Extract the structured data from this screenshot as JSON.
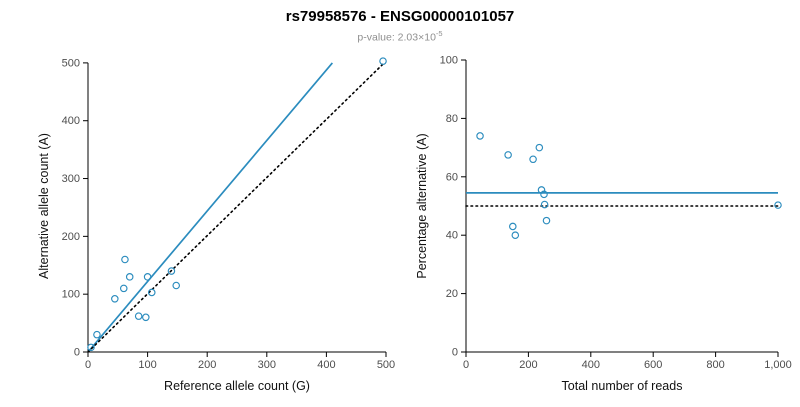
{
  "title": "rs79958576 - ENSG00000101057",
  "subtitle": {
    "prefix": "p-value: 2.03",
    "base": "×10",
    "exponent": "-5"
  },
  "colors": {
    "accent": "#2b8cbe",
    "dotted": "#000000",
    "axis": "#000000",
    "tick_text": "#4d4d4d",
    "label_text": "#111111"
  },
  "chart_data": [
    {
      "type": "scatter",
      "title": "",
      "xlabel": "Reference allele count (G)",
      "ylabel": "Alternative allele count (A)",
      "xlim": [
        0,
        500
      ],
      "ylim": [
        0,
        505
      ],
      "xticks": {
        "values": [
          0,
          100,
          200,
          300,
          400,
          500
        ],
        "labels": [
          "0",
          "100",
          "200",
          "300",
          "400",
          "500"
        ]
      },
      "yticks": {
        "values": [
          0,
          100,
          200,
          300,
          400,
          500
        ],
        "labels": [
          "0",
          "100",
          "200",
          "300",
          "400",
          "500"
        ]
      },
      "points": [
        [
          5,
          8
        ],
        [
          15,
          30
        ],
        [
          45,
          92
        ],
        [
          60,
          110
        ],
        [
          62,
          160
        ],
        [
          70,
          130
        ],
        [
          85,
          62
        ],
        [
          97,
          60
        ],
        [
          100,
          130
        ],
        [
          107,
          103
        ],
        [
          140,
          140
        ],
        [
          148,
          115
        ],
        [
          495,
          503
        ]
      ],
      "lines": [
        {
          "style": "solid",
          "color": "#2b8cbe",
          "from": [
            0,
            0
          ],
          "to": [
            410,
            500
          ]
        },
        {
          "style": "dotted",
          "color": "#000000",
          "from": [
            0,
            0
          ],
          "to": [
            497,
            500
          ]
        }
      ],
      "legend": "none",
      "grid": false
    },
    {
      "type": "scatter",
      "title": "",
      "xlabel": "Total number of reads",
      "ylabel": "Percentage alternative (A)",
      "xlim": [
        0,
        1000
      ],
      "ylim": [
        0,
        100
      ],
      "xticks": {
        "values": [
          0,
          200,
          400,
          600,
          800,
          1000
        ],
        "labels": [
          "0",
          "200",
          "400",
          "600",
          "800",
          "1,000"
        ]
      },
      "yticks": {
        "values": [
          0,
          20,
          40,
          60,
          80,
          100
        ],
        "labels": [
          "0",
          "20",
          "40",
          "60",
          "80",
          "100"
        ]
      },
      "points": [
        [
          45,
          74
        ],
        [
          135,
          67.5
        ],
        [
          150,
          43
        ],
        [
          158,
          40
        ],
        [
          215,
          66
        ],
        [
          235,
          70
        ],
        [
          242,
          55.5
        ],
        [
          250,
          54
        ],
        [
          252,
          50.5
        ],
        [
          258,
          45
        ],
        [
          1000,
          50.3
        ]
      ],
      "lines": [
        {
          "style": "solid",
          "color": "#2b8cbe",
          "from": [
            0,
            54.5
          ],
          "to": [
            1000,
            54.5
          ]
        },
        {
          "style": "dotted",
          "color": "#000000",
          "from": [
            0,
            50
          ],
          "to": [
            1000,
            50
          ]
        }
      ],
      "legend": "none",
      "grid": false
    }
  ]
}
